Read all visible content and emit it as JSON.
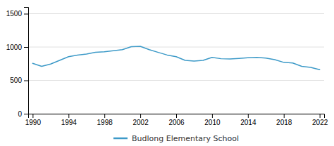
{
  "chart_data": {
    "type": "line",
    "x": [
      1990,
      1991,
      1992,
      1993,
      1994,
      1995,
      1996,
      1997,
      1998,
      1999,
      2000,
      2001,
      2002,
      2003,
      2004,
      2005,
      2006,
      2007,
      2008,
      2009,
      2010,
      2011,
      2012,
      2013,
      2014,
      2015,
      2016,
      2017,
      2018,
      2019,
      2020,
      2021,
      2022
    ],
    "series": [
      {
        "name": "Budlong Elementary School",
        "color": "#3d9ac8",
        "values": [
          755,
          710,
          745,
          800,
          855,
          880,
          895,
          920,
          930,
          945,
          960,
          1005,
          1010,
          960,
          920,
          880,
          855,
          800,
          790,
          800,
          845,
          825,
          820,
          830,
          840,
          845,
          835,
          810,
          770,
          760,
          710,
          695,
          660
        ]
      }
    ],
    "xlim": [
      1989.5,
      2022.5
    ],
    "ylim": [
      0,
      1600
    ],
    "xticks": [
      1990,
      1994,
      1998,
      2002,
      2006,
      2010,
      2014,
      2018,
      2022
    ],
    "yticks": [
      0,
      500,
      1000,
      1500
    ],
    "grid": true,
    "legend": "bottom"
  }
}
